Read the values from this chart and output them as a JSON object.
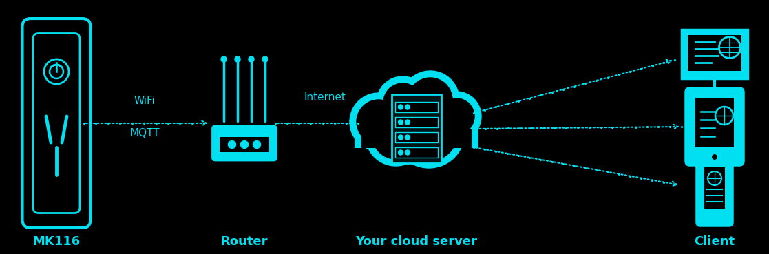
{
  "bg_color": "#000000",
  "cyan": "#00e0f0",
  "labels": {
    "mk116": "MK116",
    "router": "Router",
    "cloud": "Your cloud server",
    "client": "Client",
    "wifi": "WiFi",
    "mqtt": "MQTT",
    "internet": "Internet"
  }
}
